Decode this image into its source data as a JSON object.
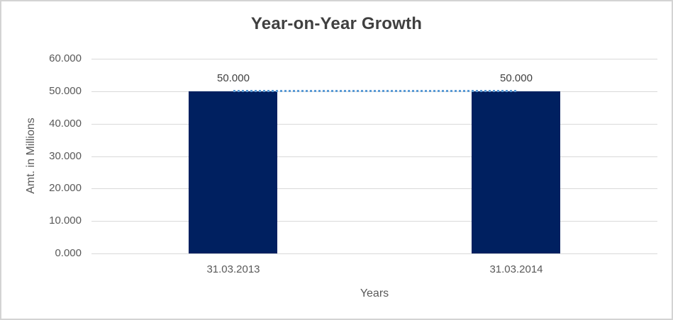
{
  "window": {
    "background": "#ffffff",
    "border_color": "#d3d3d3"
  },
  "chart_data": {
    "type": "bar",
    "title": "Year-on-Year Growth",
    "categories": [
      "31.03.2013",
      "31.03.2014"
    ],
    "values": [
      50.0,
      50.0
    ],
    "value_labels": [
      "50.000",
      "50.000"
    ],
    "xlabel": "Years",
    "ylabel": "Amt. in Millions",
    "ylim": [
      0,
      60
    ],
    "ytick_values": [
      0,
      10,
      20,
      30,
      40,
      50,
      60
    ],
    "ytick_labels": [
      "0.000",
      "10.000",
      "20.000",
      "30.000",
      "40.000",
      "50.000",
      "60.000"
    ],
    "grid": true,
    "legend": false,
    "colors": {
      "bar": "#002060",
      "gridline": "#d9d9d9",
      "tick_text": "#595959",
      "title_text": "#404040",
      "trendline": "#5b9bd5"
    },
    "trendline": {
      "style": "dotted",
      "color": "#5b9bd5",
      "from_category": "31.03.2013",
      "to_category": "31.03.2014",
      "at_value": 50.0
    }
  }
}
